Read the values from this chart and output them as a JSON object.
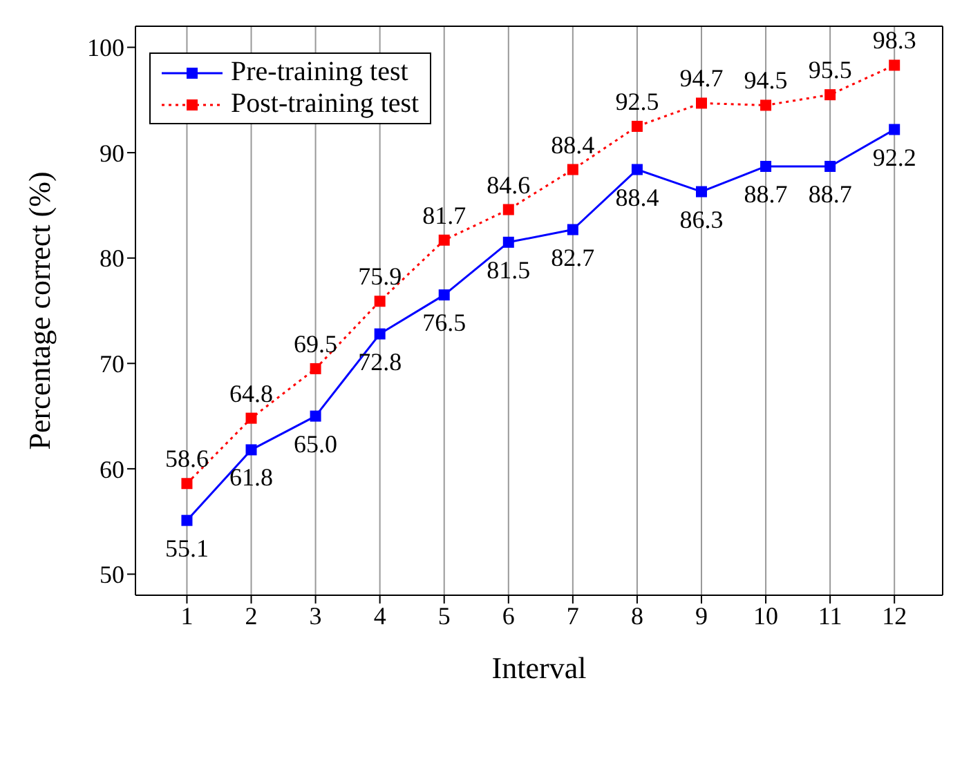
{
  "chart_data": {
    "type": "line",
    "xlabel": "Interval",
    "ylabel": "Percentage correct (%)",
    "x": [
      1,
      2,
      3,
      4,
      5,
      6,
      7,
      8,
      9,
      10,
      11,
      12
    ],
    "series": [
      {
        "name": "Pre-training test",
        "color": "#0000ff",
        "line_style": "solid",
        "values": [
          55.1,
          61.8,
          65.0,
          72.8,
          76.5,
          81.5,
          82.7,
          88.4,
          86.3,
          88.7,
          88.7,
          92.2
        ],
        "value_labels": [
          "55.1",
          "61.8",
          "65.0",
          "72.8",
          "76.5",
          "81.5",
          "82.7",
          "88.4",
          "86.3",
          "88.7",
          "88.7",
          "92.2"
        ]
      },
      {
        "name": "Post-training test",
        "color": "#ff0000",
        "line_style": "dotted",
        "values": [
          58.6,
          64.8,
          69.5,
          75.9,
          81.7,
          84.6,
          88.4,
          92.5,
          94.7,
          94.5,
          95.5,
          98.3
        ],
        "value_labels": [
          "58.6",
          "64.8",
          "69.5",
          "75.9",
          "81.7",
          "84.6",
          "88.4",
          "92.5",
          "94.7",
          "94.5",
          "95.5",
          "98.3"
        ]
      }
    ],
    "xlim": [
      0.2,
      12.75
    ],
    "xticks": [
      1,
      2,
      3,
      4,
      5,
      6,
      7,
      8,
      9,
      10,
      11,
      12
    ],
    "ylim": [
      48,
      102
    ],
    "yticks": [
      50,
      60,
      70,
      80,
      90,
      100
    ],
    "grid": "x",
    "legend": "top left",
    "marker": "square"
  }
}
